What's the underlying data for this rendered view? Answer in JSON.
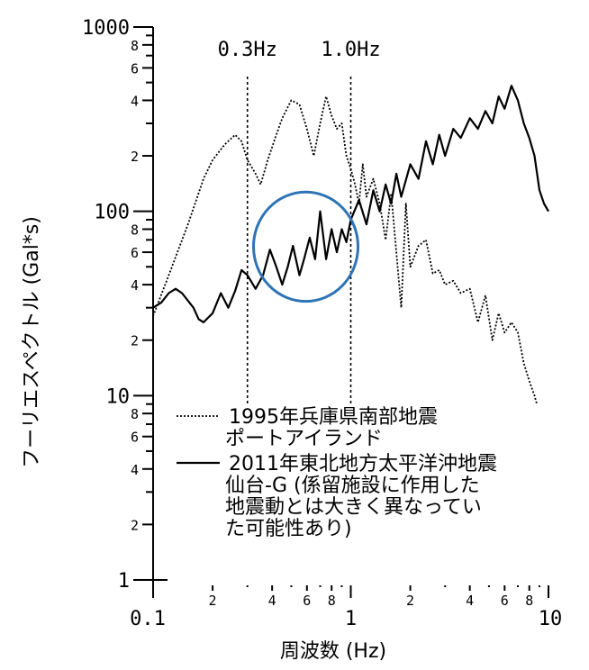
{
  "chart_data": {
    "type": "line",
    "xlabel": "周波数 (Hz)",
    "ylabel": "フーリエスペクトル (Gal*s)",
    "xscale": "log",
    "yscale": "log",
    "xlim": [
      0.1,
      10
    ],
    "ylim": [
      1,
      1000
    ],
    "x_major_ticks": [
      "0.1",
      "1",
      "10"
    ],
    "x_minor_ticks": [
      "2",
      "4",
      "6",
      "8",
      "2",
      "4",
      "6",
      "8"
    ],
    "y_major_ticks": [
      "1",
      "10",
      "100",
      "1000"
    ],
    "y_minor_ticks": [
      "2",
      "4",
      "6",
      "8",
      "2",
      "4",
      "6",
      "8",
      "2",
      "4",
      "6",
      "8"
    ],
    "reference_lines": [
      {
        "x": 0.3,
        "label": "0.3Hz"
      },
      {
        "x": 1.0,
        "label": "1.0Hz"
      }
    ],
    "highlight": {
      "shape": "ellipse",
      "color": "#2E74B5",
      "x_range": [
        0.35,
        1.0
      ],
      "y_range": [
        38,
        95
      ]
    },
    "legend": {
      "position": "bottom-right",
      "entries": [
        {
          "style": "dotted",
          "lines": [
            "1995年兵庫県南部地震",
            "ポートアイランド"
          ]
        },
        {
          "style": "solid",
          "lines": [
            "2011年東北地方太平洋沖地震",
            "仙台-G (係留施設に作用した",
            "地震動とは大きく異なってい",
            "た可能性あり)"
          ]
        }
      ]
    },
    "series": [
      {
        "style": "dotted",
        "x": [
          0.1,
          0.12,
          0.15,
          0.18,
          0.2,
          0.23,
          0.26,
          0.28,
          0.3,
          0.33,
          0.35,
          0.38,
          0.42,
          0.45,
          0.5,
          0.55,
          0.6,
          0.65,
          0.7,
          0.75,
          0.8,
          0.85,
          0.9,
          0.95,
          1.0,
          1.05,
          1.1,
          1.15,
          1.2,
          1.3,
          1.4,
          1.5,
          1.6,
          1.7,
          1.8,
          1.9,
          2.0,
          2.2,
          2.4,
          2.6,
          2.8,
          3.0,
          3.3,
          3.6,
          4.0,
          4.4,
          4.8,
          5.2,
          5.6,
          6.0,
          6.5,
          7.0,
          7.5,
          8.0,
          8.5,
          9.0,
          9.5,
          10.0
        ],
        "y": [
          27,
          45,
          85,
          150,
          190,
          230,
          260,
          240,
          190,
          160,
          140,
          190,
          260,
          320,
          400,
          380,
          280,
          200,
          300,
          420,
          330,
          280,
          300,
          200,
          170,
          140,
          110,
          180,
          120,
          150,
          110,
          70,
          125,
          60,
          30,
          110,
          50,
          65,
          70,
          46,
          48,
          40,
          42,
          36,
          38,
          25,
          35,
          20,
          28,
          22,
          25,
          22,
          15,
          12,
          10,
          8,
          6,
          5
        ]
      },
      {
        "style": "solid",
        "x": [
          0.1,
          0.11,
          0.12,
          0.13,
          0.14,
          0.16,
          0.17,
          0.18,
          0.2,
          0.22,
          0.24,
          0.26,
          0.28,
          0.3,
          0.33,
          0.36,
          0.39,
          0.42,
          0.45,
          0.48,
          0.51,
          0.55,
          0.58,
          0.62,
          0.66,
          0.7,
          0.75,
          0.8,
          0.85,
          0.9,
          0.95,
          1.0,
          1.1,
          1.2,
          1.3,
          1.4,
          1.5,
          1.6,
          1.7,
          1.8,
          2.0,
          2.2,
          2.4,
          2.6,
          2.8,
          3.0,
          3.3,
          3.6,
          4.0,
          4.4,
          4.8,
          5.2,
          5.6,
          6.0,
          6.5,
          7.0,
          7.5,
          8.0,
          8.5,
          9.0,
          9.5,
          10.0
        ],
        "y": [
          30,
          32,
          36,
          38,
          36,
          30,
          26,
          25,
          28,
          36,
          30,
          37,
          48,
          45,
          38,
          45,
          62,
          50,
          40,
          50,
          65,
          45,
          55,
          72,
          55,
          100,
          55,
          80,
          60,
          80,
          68,
          90,
          115,
          85,
          130,
          100,
          140,
          110,
          160,
          120,
          180,
          150,
          240,
          180,
          260,
          200,
          280,
          250,
          320,
          280,
          350,
          300,
          420,
          360,
          480,
          400,
          300,
          250,
          200,
          130,
          110,
          100
        ]
      }
    ]
  }
}
